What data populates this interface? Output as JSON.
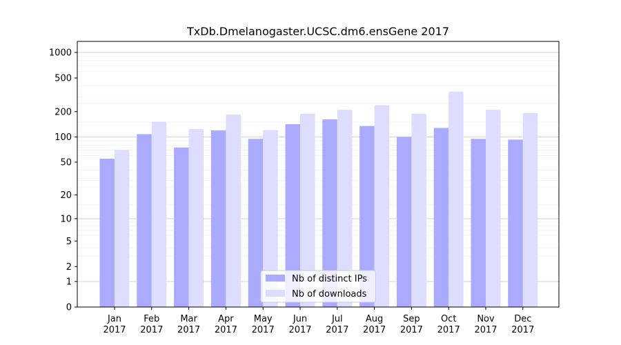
{
  "chart_data": {
    "type": "bar",
    "title": "TxDb.Dmelanogaster.UCSC.dm6.ensGene 2017",
    "xlabel": "",
    "ylabel": "",
    "y_scale": "log1p",
    "ylim": [
      0,
      1350
    ],
    "categories": [
      [
        "Jan",
        "2017"
      ],
      [
        "Feb",
        "2017"
      ],
      [
        "Mar",
        "2017"
      ],
      [
        "Apr",
        "2017"
      ],
      [
        "May",
        "2017"
      ],
      [
        "Jun",
        "2017"
      ],
      [
        "Jul",
        "2017"
      ],
      [
        "Aug",
        "2017"
      ],
      [
        "Sep",
        "2017"
      ],
      [
        "Oct",
        "2017"
      ],
      [
        "Nov",
        "2017"
      ],
      [
        "Dec",
        "2017"
      ]
    ],
    "yticks": [
      0,
      1,
      2,
      5,
      10,
      20,
      50,
      100,
      200,
      500,
      1000
    ],
    "series": [
      {
        "name": "Nb of distinct IPs",
        "color": "#aaaaff",
        "values": [
          55,
          108,
          75,
          120,
          95,
          142,
          162,
          135,
          100,
          128,
          95,
          93
        ]
      },
      {
        "name": "Nb of downloads",
        "color": "#ddddff",
        "values": [
          70,
          152,
          124,
          184,
          121,
          188,
          210,
          238,
          188,
          345,
          210,
          192
        ]
      }
    ],
    "grid": true,
    "legend_position": "bottom-center"
  }
}
